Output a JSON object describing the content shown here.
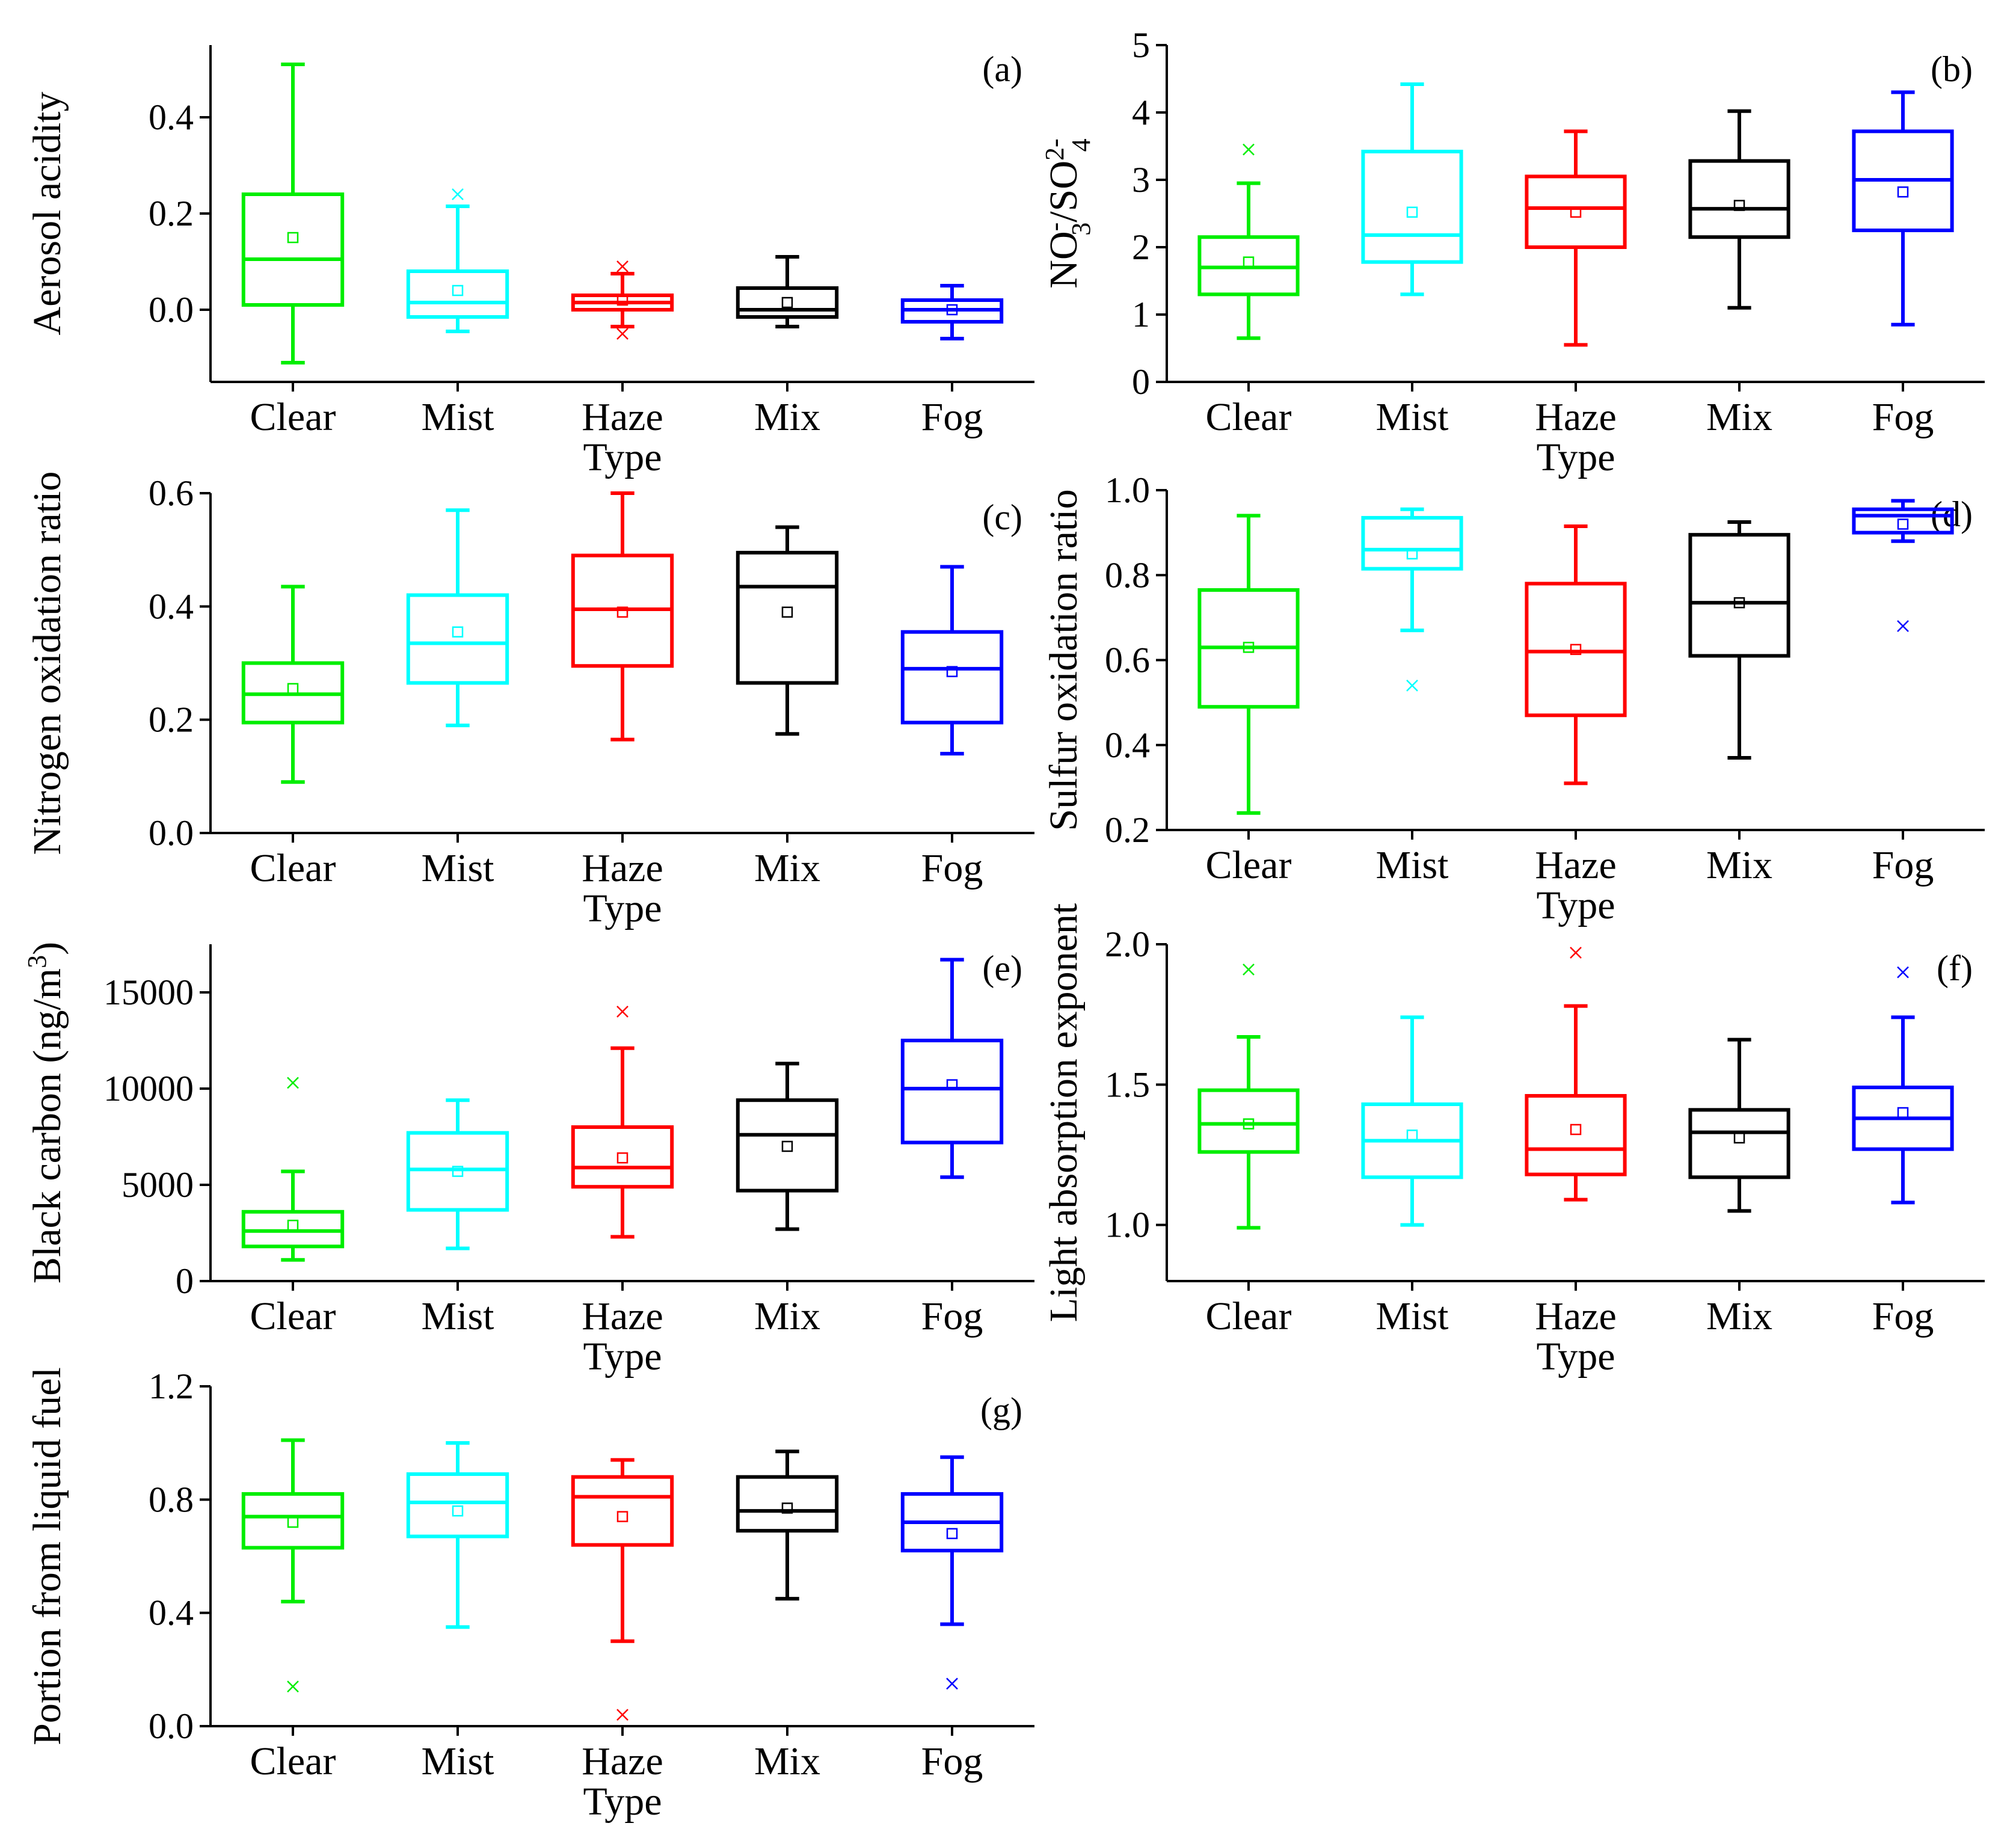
{
  "figure": {
    "categories": [
      "Clear",
      "Mist",
      "Haze",
      "Mix",
      "Fog"
    ]
  },
  "chart_data": [
    {
      "type": "box",
      "panel_label": "(a)",
      "title": "",
      "ylabel": "Aerosol acidity",
      "xlabel": "Type",
      "ylim": [
        -0.15,
        0.55
      ],
      "yticks": [
        0.0,
        0.2,
        0.4
      ],
      "ytick_labels": [
        "0.0",
        "0.2",
        "0.4"
      ],
      "categories": [
        "Clear",
        "Mist",
        "Haze",
        "Mix",
        "Fog"
      ],
      "colors": [
        "#00ee00",
        "#00ffff",
        "#ff0000",
        "#000000",
        "#0000ff"
      ],
      "boxes": [
        {
          "whisker_low": -0.11,
          "q1": 0.01,
          "median": 0.105,
          "q3": 0.24,
          "whisker_high": 0.51,
          "mean": 0.15,
          "outliers": []
        },
        {
          "whisker_low": -0.045,
          "q1": -0.015,
          "median": 0.015,
          "q3": 0.08,
          "whisker_high": 0.215,
          "mean": 0.04,
          "outliers": [
            0.24
          ]
        },
        {
          "whisker_low": -0.035,
          "q1": 0.0,
          "median": 0.015,
          "q3": 0.03,
          "whisker_high": 0.075,
          "mean": 0.02,
          "outliers": [
            -0.05,
            0.09
          ]
        },
        {
          "whisker_low": -0.035,
          "q1": -0.015,
          "median": 0.0,
          "q3": 0.045,
          "whisker_high": 0.11,
          "mean": 0.015,
          "outliers": []
        },
        {
          "whisker_low": -0.06,
          "q1": -0.025,
          "median": 0.0,
          "q3": 0.02,
          "whisker_high": 0.05,
          "mean": 0.0,
          "outliers": []
        }
      ]
    },
    {
      "type": "box",
      "panel_label": "(b)",
      "title": "",
      "ylabel_main": "NO",
      "ylabel_sub1": "3",
      "ylabel_sup1": "-",
      "ylabel_mid": "/SO",
      "ylabel_sub2": "4",
      "ylabel_sup2": "2-",
      "xlabel": "Type",
      "ylim": [
        0,
        5
      ],
      "yticks": [
        0,
        1,
        2,
        3,
        4,
        5
      ],
      "ytick_labels": [
        "0",
        "1",
        "2",
        "3",
        "4",
        "5"
      ],
      "categories": [
        "Clear",
        "Mist",
        "Haze",
        "Mix",
        "Fog"
      ],
      "colors": [
        "#00ee00",
        "#00ffff",
        "#ff0000",
        "#000000",
        "#0000ff"
      ],
      "boxes": [
        {
          "whisker_low": 0.65,
          "q1": 1.3,
          "median": 1.7,
          "q3": 2.15,
          "whisker_high": 2.95,
          "mean": 1.78,
          "outliers": [
            3.45
          ]
        },
        {
          "whisker_low": 1.3,
          "q1": 1.78,
          "median": 2.18,
          "q3": 3.42,
          "whisker_high": 4.42,
          "mean": 2.52,
          "outliers": []
        },
        {
          "whisker_low": 0.55,
          "q1": 2.0,
          "median": 2.58,
          "q3": 3.05,
          "whisker_high": 3.72,
          "mean": 2.52,
          "outliers": []
        },
        {
          "whisker_low": 1.1,
          "q1": 2.15,
          "median": 2.57,
          "q3": 3.28,
          "whisker_high": 4.02,
          "mean": 2.62,
          "outliers": []
        },
        {
          "whisker_low": 0.85,
          "q1": 2.25,
          "median": 3.0,
          "q3": 3.72,
          "whisker_high": 4.3,
          "mean": 2.82,
          "outliers": []
        }
      ]
    },
    {
      "type": "box",
      "panel_label": "(c)",
      "title": "",
      "ylabel": "Nitrogen oxidation ratio",
      "xlabel": "Type",
      "ylim": [
        0.0,
        0.6
      ],
      "yticks": [
        0.0,
        0.2,
        0.4,
        0.6
      ],
      "ytick_labels": [
        "0.0",
        "0.2",
        "0.4",
        "0.6"
      ],
      "categories": [
        "Clear",
        "Mist",
        "Haze",
        "Mix",
        "Fog"
      ],
      "colors": [
        "#00ee00",
        "#00ffff",
        "#ff0000",
        "#000000",
        "#0000ff"
      ],
      "boxes": [
        {
          "whisker_low": 0.09,
          "q1": 0.195,
          "median": 0.245,
          "q3": 0.3,
          "whisker_high": 0.435,
          "mean": 0.255,
          "outliers": []
        },
        {
          "whisker_low": 0.19,
          "q1": 0.265,
          "median": 0.335,
          "q3": 0.42,
          "whisker_high": 0.57,
          "mean": 0.355,
          "outliers": []
        },
        {
          "whisker_low": 0.165,
          "q1": 0.295,
          "median": 0.395,
          "q3": 0.49,
          "whisker_high": 0.6,
          "mean": 0.39,
          "outliers": []
        },
        {
          "whisker_low": 0.175,
          "q1": 0.265,
          "median": 0.435,
          "q3": 0.495,
          "whisker_high": 0.54,
          "mean": 0.39,
          "outliers": []
        },
        {
          "whisker_low": 0.14,
          "q1": 0.195,
          "median": 0.29,
          "q3": 0.355,
          "whisker_high": 0.47,
          "mean": 0.285,
          "outliers": []
        }
      ]
    },
    {
      "type": "box",
      "panel_label": "(d)",
      "title": "",
      "ylabel": "Sulfur oxidation ratio",
      "xlabel": "Type",
      "ylim": [
        0.2,
        1.0
      ],
      "yticks": [
        0.2,
        0.4,
        0.6,
        0.8,
        1.0
      ],
      "ytick_labels": [
        "0.2",
        "0.4",
        "0.6",
        "0.8",
        "1.0"
      ],
      "categories": [
        "Clear",
        "Mist",
        "Haze",
        "Mix",
        "Fog"
      ],
      "colors": [
        "#00ee00",
        "#00ffff",
        "#ff0000",
        "#000000",
        "#0000ff"
      ],
      "boxes": [
        {
          "whisker_low": 0.24,
          "q1": 0.49,
          "median": 0.63,
          "q3": 0.765,
          "whisker_high": 0.94,
          "mean": 0.63,
          "outliers": []
        },
        {
          "whisker_low": 0.67,
          "q1": 0.815,
          "median": 0.86,
          "q3": 0.935,
          "whisker_high": 0.955,
          "mean": 0.85,
          "outliers": [
            0.54
          ]
        },
        {
          "whisker_low": 0.31,
          "q1": 0.47,
          "median": 0.62,
          "q3": 0.78,
          "whisker_high": 0.915,
          "mean": 0.625,
          "outliers": []
        },
        {
          "whisker_low": 0.37,
          "q1": 0.61,
          "median": 0.735,
          "q3": 0.895,
          "whisker_high": 0.925,
          "mean": 0.735,
          "outliers": []
        },
        {
          "whisker_low": 0.88,
          "q1": 0.9,
          "median": 0.94,
          "q3": 0.955,
          "whisker_high": 0.975,
          "mean": 0.92,
          "outliers": [
            0.68
          ]
        }
      ]
    },
    {
      "type": "box",
      "panel_label": "(e)",
      "title": "",
      "ylabel_main": "Black carbon (ng/m",
      "ylabel_sup": "3",
      "ylabel_end": ")",
      "xlabel": "Type",
      "ylim": [
        0,
        17500
      ],
      "yticks": [
        0,
        5000,
        10000,
        15000
      ],
      "ytick_labels": [
        "0",
        "5000",
        "10000",
        "15000"
      ],
      "categories": [
        "Clear",
        "Mist",
        "Haze",
        "Mix",
        "Fog"
      ],
      "colors": [
        "#00ee00",
        "#00ffff",
        "#ff0000",
        "#000000",
        "#0000ff"
      ],
      "boxes": [
        {
          "whisker_low": 1100,
          "q1": 1800,
          "median": 2600,
          "q3": 3600,
          "whisker_high": 5700,
          "mean": 2900,
          "outliers": [
            10300
          ]
        },
        {
          "whisker_low": 1700,
          "q1": 3700,
          "median": 5800,
          "q3": 7700,
          "whisker_high": 9400,
          "mean": 5700,
          "outliers": []
        },
        {
          "whisker_low": 2300,
          "q1": 4900,
          "median": 5900,
          "q3": 8000,
          "whisker_high": 12100,
          "mean": 6400,
          "outliers": [
            14000
          ]
        },
        {
          "whisker_low": 2700,
          "q1": 4700,
          "median": 7600,
          "q3": 9400,
          "whisker_high": 11300,
          "mean": 7000,
          "outliers": []
        },
        {
          "whisker_low": 5400,
          "q1": 7200,
          "median": 10000,
          "q3": 12500,
          "whisker_high": 16700,
          "mean": 10200,
          "outliers": []
        }
      ]
    },
    {
      "type": "box",
      "panel_label": "(f)",
      "title": "",
      "ylabel": "Light absorption exponent",
      "xlabel": "Type",
      "ylim": [
        0.8,
        2.0
      ],
      "yticks": [
        1.0,
        1.5,
        2.0
      ],
      "ytick_labels": [
        "1.0",
        "1.5",
        "2.0"
      ],
      "categories": [
        "Clear",
        "Mist",
        "Haze",
        "Mix",
        "Fog"
      ],
      "colors": [
        "#00ee00",
        "#00ffff",
        "#ff0000",
        "#000000",
        "#0000ff"
      ],
      "boxes": [
        {
          "whisker_low": 0.99,
          "q1": 1.26,
          "median": 1.36,
          "q3": 1.48,
          "whisker_high": 1.67,
          "mean": 1.36,
          "outliers": [
            1.91
          ]
        },
        {
          "whisker_low": 1.0,
          "q1": 1.17,
          "median": 1.3,
          "q3": 1.43,
          "whisker_high": 1.74,
          "mean": 1.32,
          "outliers": []
        },
        {
          "whisker_low": 1.09,
          "q1": 1.18,
          "median": 1.27,
          "q3": 1.46,
          "whisker_high": 1.78,
          "mean": 1.34,
          "outliers": [
            1.97
          ]
        },
        {
          "whisker_low": 1.05,
          "q1": 1.17,
          "median": 1.33,
          "q3": 1.41,
          "whisker_high": 1.66,
          "mean": 1.31,
          "outliers": []
        },
        {
          "whisker_low": 1.08,
          "q1": 1.27,
          "median": 1.38,
          "q3": 1.49,
          "whisker_high": 1.74,
          "mean": 1.4,
          "outliers": [
            1.9
          ]
        }
      ]
    },
    {
      "type": "box",
      "panel_label": "(g)",
      "title": "",
      "ylabel": "Portion from liquid fuel",
      "xlabel": "Type",
      "ylim": [
        0.0,
        1.2
      ],
      "yticks": [
        0.0,
        0.4,
        0.8,
        1.2
      ],
      "ytick_labels": [
        "0.0",
        "0.4",
        "0.8",
        "1.2"
      ],
      "categories": [
        "Clear",
        "Mist",
        "Haze",
        "Mix",
        "Fog"
      ],
      "colors": [
        "#00ee00",
        "#00ffff",
        "#ff0000",
        "#000000",
        "#0000ff"
      ],
      "boxes": [
        {
          "whisker_low": 0.44,
          "q1": 0.63,
          "median": 0.74,
          "q3": 0.82,
          "whisker_high": 1.01,
          "mean": 0.72,
          "outliers": [
            0.14
          ]
        },
        {
          "whisker_low": 0.35,
          "q1": 0.67,
          "median": 0.79,
          "q3": 0.89,
          "whisker_high": 1.0,
          "mean": 0.76,
          "outliers": []
        },
        {
          "whisker_low": 0.3,
          "q1": 0.64,
          "median": 0.81,
          "q3": 0.88,
          "whisker_high": 0.94,
          "mean": 0.74,
          "outliers": [
            0.04
          ]
        },
        {
          "whisker_low": 0.45,
          "q1": 0.69,
          "median": 0.76,
          "q3": 0.88,
          "whisker_high": 0.97,
          "mean": 0.77,
          "outliers": []
        },
        {
          "whisker_low": 0.36,
          "q1": 0.62,
          "median": 0.72,
          "q3": 0.82,
          "whisker_high": 0.95,
          "mean": 0.68,
          "outliers": [
            0.15
          ]
        }
      ]
    }
  ]
}
